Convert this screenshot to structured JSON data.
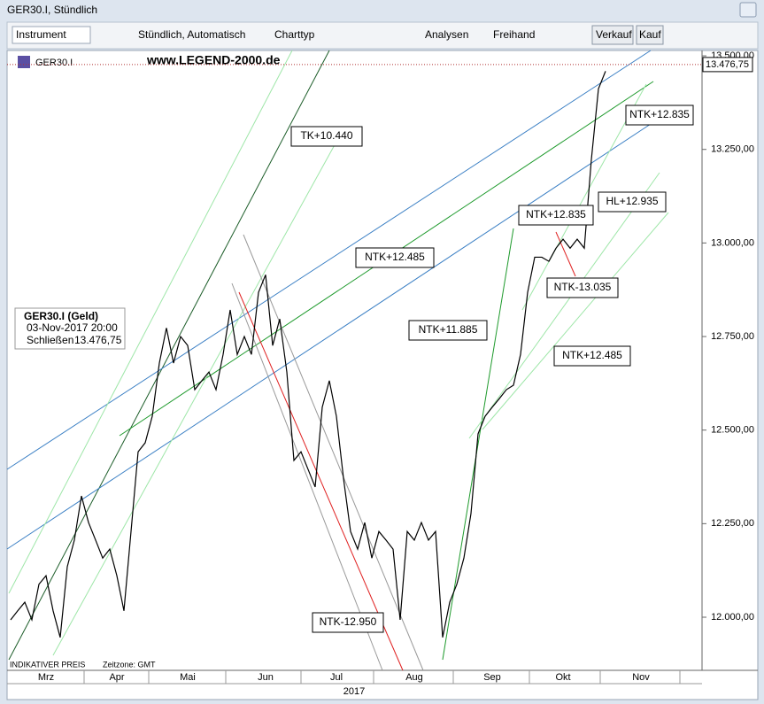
{
  "window": {
    "title": "GER30.I, Stündlich"
  },
  "toolbar": {
    "instrument": "Instrument",
    "interval": "Stündlich, Automatisch",
    "chart_type": "Charttyp",
    "analyses": "Analysen",
    "freehand": "Freihand",
    "sell": "Verkauf",
    "buy": "Kauf"
  },
  "symbol": "GER30.I",
  "watermark": "www.LEGEND-2000.de",
  "info_box": {
    "title": "GER30.I (Geld)",
    "date": "03-Nov-2017 20:00",
    "close_label": "Schließen",
    "close_value": "13.476,75"
  },
  "footer": {
    "price_note": "INDIKATIVER PREIS",
    "timezone": "Zeitzone: GMT"
  },
  "chart_data": {
    "type": "line",
    "year_label": "2017",
    "annotations": [
      "TK+10.440",
      "NTK+12.485",
      "NTK+11.885",
      "NTK-12.950",
      "NTK+12.835",
      "HL+12.935",
      "NTK-13.035",
      "NTK+12.485",
      "NTK+12.835"
    ],
    "categories": [
      null,
      null,
      null,
      null,
      null,
      "Mrz",
      null,
      null,
      null,
      null,
      null,
      null,
      null,
      null,
      null,
      "Apr",
      null,
      null,
      null,
      null,
      null,
      null,
      null,
      null,
      null,
      "Mai",
      null,
      null,
      null,
      null,
      null,
      null,
      null,
      null,
      null,
      null,
      "Jun",
      null,
      null,
      null,
      null,
      null,
      null,
      null,
      null,
      null,
      "Jul",
      null,
      null,
      null,
      null,
      null,
      null,
      null,
      null,
      null,
      null,
      "Aug",
      null,
      null,
      null,
      null,
      null,
      null,
      null,
      null,
      null,
      null,
      "Sep",
      null,
      null,
      null,
      null,
      null,
      null,
      null,
      null,
      null,
      "Okt",
      null,
      null,
      null,
      null,
      null,
      null,
      null,
      null,
      null,
      null,
      "Nov",
      null,
      null,
      null,
      null,
      null,
      null,
      null
    ],
    "series": [
      {
        "name": "GER30.I",
        "color": "#000000",
        "values": [
          11993,
          12017,
          12040,
          11993,
          12088,
          12111,
          12017,
          11946,
          12135,
          12206,
          12324,
          12253,
          12206,
          12158,
          12182,
          12111,
          12017,
          12229,
          12442,
          12466,
          12537,
          12679,
          12773,
          12679,
          12750,
          12726,
          12608,
          12632,
          12655,
          12608,
          12702,
          12821,
          12702,
          12750,
          12702,
          12868,
          12915,
          12726,
          12797,
          12655,
          12419,
          12442,
          12395,
          12348,
          12561,
          12632,
          12537,
          12371,
          12229,
          12182,
          12253,
          12158,
          12229,
          12206,
          12182,
          11993,
          12229,
          12206,
          12253,
          12206,
          12229,
          11946,
          12040,
          12088,
          12158,
          12277,
          12490,
          12537,
          12561,
          12584,
          12608,
          12620,
          12702,
          12868,
          12962,
          12962,
          12951,
          12986,
          13010,
          12986,
          13010,
          12986,
          13223,
          13412,
          13459,
          null,
          null,
          null,
          null,
          null,
          null,
          null,
          null,
          null,
          null,
          null,
          null
        ]
      }
    ],
    "last_price": {
      "value": 13476.75,
      "label": "13.476,75"
    },
    "ylim": [
      11858,
      13512
    ],
    "yticks": [
      {
        "value": 12000,
        "label": "12.000,00"
      },
      {
        "value": 12250,
        "label": "12.250,00"
      },
      {
        "value": 12500,
        "label": "12.500,00"
      },
      {
        "value": 12750,
        "label": "12.750,00"
      },
      {
        "value": 13000,
        "label": "13.000,00"
      },
      {
        "value": 13250,
        "label": "13.250,00"
      },
      {
        "value": 13500,
        "label": "13.500,00"
      }
    ]
  }
}
